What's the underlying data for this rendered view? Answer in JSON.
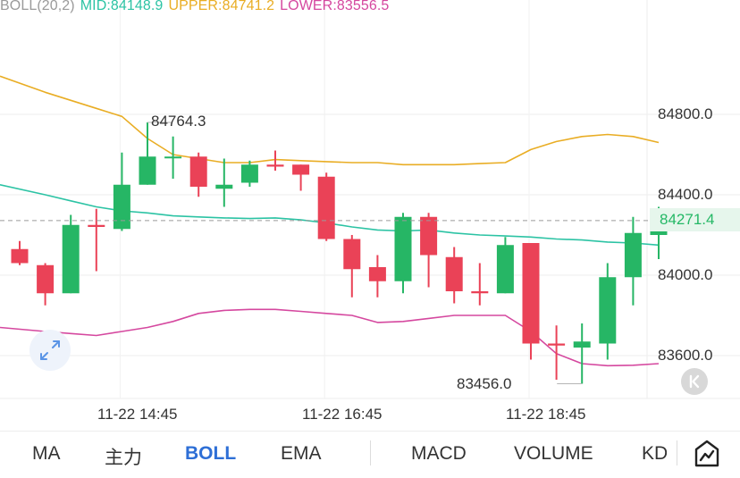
{
  "header": {
    "name": "BOLL(20,2)",
    "mid": "MID:84148.9",
    "upper": "UPPER:84741.2",
    "lower": "LOWER:83556.5"
  },
  "price_tag": "84271.4",
  "colors": {
    "up": "#26b665",
    "down": "#ea4257",
    "mid": "#2cc3a4",
    "upper": "#e9ad24",
    "lower": "#d5489f",
    "active_tab": "#2e6fd6"
  },
  "tabs": {
    "ma": "MA",
    "main": "主力",
    "boll": "BOLL",
    "ema": "EMA",
    "macd": "MACD",
    "volume": "VOLUME",
    "kd": "KD"
  },
  "icons": {
    "expand": "expand-arrows-icon",
    "collapse": "k-collapse-icon",
    "draw": "draw-line-icon"
  },
  "chart_data": {
    "type": "candlestick",
    "title": "",
    "xlabel": "",
    "ylabel": "",
    "ylim": [
      83300,
      85100
    ],
    "yticks": [
      83600,
      84000,
      84400,
      84800
    ],
    "ytick_labels": [
      "83600.0",
      "84000.0",
      "84400.0",
      "84800.0"
    ],
    "x_labels": [
      {
        "index": 4,
        "label": "11-22 14:45"
      },
      {
        "index": 12,
        "label": "11-22 16:45"
      },
      {
        "index": 20,
        "label": "11-22 18:45"
      }
    ],
    "high_label": "84764.3",
    "low_label": "83456.0",
    "current_price": 84271.4,
    "candles": [
      {
        "open": 84130,
        "high": 84170,
        "low": 84050,
        "close": 84060
      },
      {
        "open": 84050,
        "high": 84060,
        "low": 83850,
        "close": 83910
      },
      {
        "open": 83910,
        "high": 84300,
        "low": 83910,
        "close": 84250
      },
      {
        "open": 84250,
        "high": 84330,
        "low": 84020,
        "close": 84240
      },
      {
        "open": 84230,
        "high": 84610,
        "low": 84220,
        "close": 84450
      },
      {
        "open": 84450,
        "high": 84760,
        "low": 84450,
        "close": 84590
      },
      {
        "open": 84590,
        "high": 84690,
        "low": 84480,
        "close": 84590
      },
      {
        "open": 84590,
        "high": 84610,
        "low": 84390,
        "close": 84440
      },
      {
        "open": 84430,
        "high": 84580,
        "low": 84340,
        "close": 84450
      },
      {
        "open": 84460,
        "high": 84570,
        "low": 84440,
        "close": 84550
      },
      {
        "open": 84550,
        "high": 84620,
        "low": 84520,
        "close": 84540
      },
      {
        "open": 84550,
        "high": 84550,
        "low": 84420,
        "close": 84500
      },
      {
        "open": 84490,
        "high": 84510,
        "low": 84170,
        "close": 84180
      },
      {
        "open": 84180,
        "high": 84200,
        "low": 83890,
        "close": 84030
      },
      {
        "open": 84040,
        "high": 84100,
        "low": 83890,
        "close": 83970
      },
      {
        "open": 83970,
        "high": 84310,
        "low": 83910,
        "close": 84290
      },
      {
        "open": 84290,
        "high": 84310,
        "low": 83940,
        "close": 84100
      },
      {
        "open": 84090,
        "high": 84140,
        "low": 83860,
        "close": 83920
      },
      {
        "open": 83920,
        "high": 84060,
        "low": 83850,
        "close": 83910
      },
      {
        "open": 83910,
        "high": 84190,
        "low": 83910,
        "close": 84150
      },
      {
        "open": 84160,
        "high": 84160,
        "low": 83580,
        "close": 83660
      },
      {
        "open": 83660,
        "high": 83750,
        "low": 83480,
        "close": 83650
      },
      {
        "open": 83640,
        "high": 83760,
        "low": 83460,
        "close": 83670
      },
      {
        "open": 83660,
        "high": 84060,
        "low": 83580,
        "close": 83990
      },
      {
        "open": 83990,
        "high": 84290,
        "low": 83850,
        "close": 84210
      },
      {
        "open": 84200,
        "high": 84340,
        "low": 84080,
        "close": 84271.4
      }
    ],
    "upper": [
      84990,
      84910,
      84870,
      84830,
      84790,
      84680,
      84600,
      84580,
      84560,
      84560,
      84575,
      84570,
      84565,
      84560,
      84560,
      84550,
      84550,
      84550,
      84555,
      84560,
      84625,
      84665,
      84690,
      84700,
      84690,
      84660
    ],
    "mid": [
      84450,
      84400,
      84370,
      84340,
      84320,
      84310,
      84295,
      84290,
      84285,
      84282,
      84285,
      84275,
      84260,
      84240,
      84225,
      84220,
      84225,
      84210,
      84200,
      84195,
      84190,
      84180,
      84175,
      84165,
      84160,
      84150
    ],
    "lower": [
      83740,
      83720,
      83710,
      83700,
      83720,
      83740,
      83770,
      83810,
      83825,
      83830,
      83830,
      83820,
      83810,
      83800,
      83765,
      83770,
      83785,
      83800,
      83800,
      83800,
      83720,
      83610,
      83560,
      83550,
      83552,
      83560
    ]
  }
}
